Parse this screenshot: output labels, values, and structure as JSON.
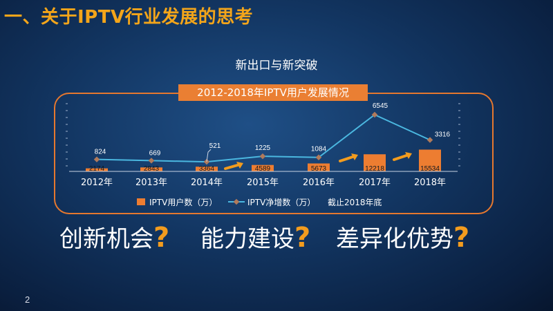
{
  "slide": {
    "title": "一、关于IPTV行业发展的思考",
    "subtitle": "新出口与新突破",
    "page_number": "2"
  },
  "chart_data": {
    "type": "bar",
    "title": "2012-2018年IPTV用户发展情况",
    "categories": [
      "2012年",
      "2013年",
      "2014年",
      "2015年",
      "2016年",
      "2017年",
      "2018年"
    ],
    "series": [
      {
        "name": "IPTV用户数（万）",
        "type": "bar",
        "color": "#ed7d31",
        "values": [
          2174,
          2843,
          3364,
          4589,
          5673,
          12218,
          15534
        ]
      },
      {
        "name": "IPTV净增数（万）",
        "type": "line",
        "color": "#4bb8e0",
        "values": [
          824,
          669,
          521,
          1225,
          1084,
          6545,
          3316
        ]
      }
    ],
    "note": "截止2018年底",
    "legend_position": "bottom"
  },
  "bottom": {
    "items": [
      {
        "text": "创新机会",
        "mark": "?"
      },
      {
        "text": "能力建设",
        "mark": "?"
      },
      {
        "text": "差异化优势",
        "mark": "?"
      }
    ]
  }
}
